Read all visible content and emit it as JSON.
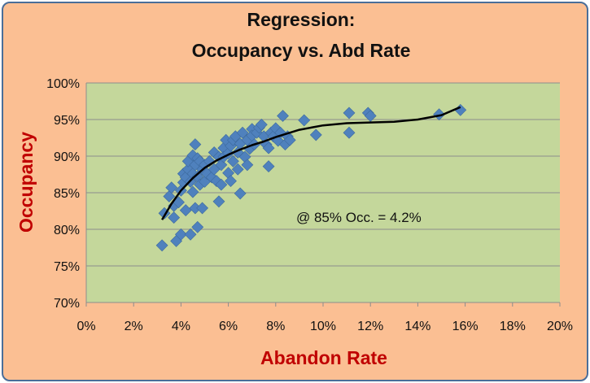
{
  "chart_data": {
    "type": "scatter",
    "title": [
      "Regression:",
      "Occupancy vs. Abd Rate"
    ],
    "xlabel": "Abandon Rate",
    "ylabel": "Occupancy",
    "xlim": [
      0,
      0.2
    ],
    "ylim": [
      0.7,
      1.0
    ],
    "x_ticks": [
      0,
      0.02,
      0.04,
      0.06,
      0.08,
      0.1,
      0.12,
      0.14,
      0.16,
      0.18,
      0.2
    ],
    "x_tick_labels": [
      "0%",
      "2%",
      "4%",
      "6%",
      "8%",
      "10%",
      "12%",
      "14%",
      "16%",
      "18%",
      "20%"
    ],
    "y_ticks": [
      0.7,
      0.75,
      0.8,
      0.85,
      0.9,
      0.95,
      1.0
    ],
    "y_tick_labels": [
      "70%",
      "75%",
      "80%",
      "85%",
      "90%",
      "95%",
      "100%"
    ],
    "grid": "horizontal",
    "annotation": "@ 85% Occ. = 4.2%",
    "colors": {
      "background": "#fbbf93",
      "plot_area": "#c4d79b",
      "border": "#4a6e99",
      "marker": "#4f81bd",
      "trendline": "#000000",
      "axis_title": "#c00000"
    },
    "series": [
      {
        "marker": "diamond",
        "points": [
          [
            0.032,
            0.778
          ],
          [
            0.033,
            0.822
          ],
          [
            0.035,
            0.845
          ],
          [
            0.036,
            0.857
          ],
          [
            0.037,
            0.832
          ],
          [
            0.037,
            0.816
          ],
          [
            0.038,
            0.784
          ],
          [
            0.039,
            0.837
          ],
          [
            0.04,
            0.853
          ],
          [
            0.04,
            0.793
          ],
          [
            0.041,
            0.864
          ],
          [
            0.041,
            0.876
          ],
          [
            0.042,
            0.871
          ],
          [
            0.042,
            0.826
          ],
          [
            0.043,
            0.882
          ],
          [
            0.043,
            0.893
          ],
          [
            0.044,
            0.865
          ],
          [
            0.044,
            0.793
          ],
          [
            0.045,
            0.876
          ],
          [
            0.045,
            0.851
          ],
          [
            0.045,
            0.901
          ],
          [
            0.046,
            0.829
          ],
          [
            0.046,
            0.888
          ],
          [
            0.046,
            0.916
          ],
          [
            0.047,
            0.897
          ],
          [
            0.047,
            0.872
          ],
          [
            0.047,
            0.803
          ],
          [
            0.048,
            0.861
          ],
          [
            0.048,
            0.893
          ],
          [
            0.049,
            0.882
          ],
          [
            0.049,
            0.829
          ],
          [
            0.05,
            0.865
          ],
          [
            0.05,
            0.888
          ],
          [
            0.051,
            0.876
          ],
          [
            0.052,
            0.893
          ],
          [
            0.053,
            0.871
          ],
          [
            0.054,
            0.905
          ],
          [
            0.054,
            0.882
          ],
          [
            0.055,
            0.866
          ],
          [
            0.056,
            0.899
          ],
          [
            0.056,
            0.838
          ],
          [
            0.057,
            0.888
          ],
          [
            0.057,
            0.861
          ],
          [
            0.058,
            0.911
          ],
          [
            0.058,
            0.899
          ],
          [
            0.059,
            0.922
          ],
          [
            0.06,
            0.877
          ],
          [
            0.06,
            0.904
          ],
          [
            0.061,
            0.914
          ],
          [
            0.061,
            0.866
          ],
          [
            0.062,
            0.893
          ],
          [
            0.062,
            0.922
          ],
          [
            0.063,
            0.927
          ],
          [
            0.064,
            0.905
          ],
          [
            0.064,
            0.882
          ],
          [
            0.065,
            0.849
          ],
          [
            0.065,
            0.917
          ],
          [
            0.066,
            0.932
          ],
          [
            0.067,
            0.899
          ],
          [
            0.068,
            0.922
          ],
          [
            0.068,
            0.888
          ],
          [
            0.069,
            0.91
          ],
          [
            0.07,
            0.937
          ],
          [
            0.07,
            0.928
          ],
          [
            0.071,
            0.916
          ],
          [
            0.072,
            0.932
          ],
          [
            0.073,
            0.939
          ],
          [
            0.074,
            0.943
          ],
          [
            0.075,
            0.927
          ],
          [
            0.076,
            0.916
          ],
          [
            0.077,
            0.886
          ],
          [
            0.077,
            0.911
          ],
          [
            0.078,
            0.932
          ],
          [
            0.079,
            0.927
          ],
          [
            0.08,
            0.938
          ],
          [
            0.081,
            0.921
          ],
          [
            0.082,
            0.932
          ],
          [
            0.083,
            0.955
          ],
          [
            0.084,
            0.916
          ],
          [
            0.085,
            0.927
          ],
          [
            0.086,
            0.922
          ],
          [
            0.092,
            0.949
          ],
          [
            0.097,
            0.929
          ],
          [
            0.111,
            0.959
          ],
          [
            0.111,
            0.932
          ],
          [
            0.119,
            0.959
          ],
          [
            0.12,
            0.955
          ],
          [
            0.149,
            0.957
          ],
          [
            0.158,
            0.963
          ]
        ]
      }
    ],
    "trendline": {
      "type": "polynomial",
      "points": [
        [
          0.032,
          0.813
        ],
        [
          0.036,
          0.835
        ],
        [
          0.04,
          0.853
        ],
        [
          0.045,
          0.87
        ],
        [
          0.05,
          0.884
        ],
        [
          0.055,
          0.894
        ],
        [
          0.06,
          0.902
        ],
        [
          0.065,
          0.909
        ],
        [
          0.07,
          0.915
        ],
        [
          0.075,
          0.92
        ],
        [
          0.08,
          0.926
        ],
        [
          0.085,
          0.931
        ],
        [
          0.09,
          0.936
        ],
        [
          0.095,
          0.939
        ],
        [
          0.1,
          0.942
        ],
        [
          0.11,
          0.945
        ],
        [
          0.12,
          0.946
        ],
        [
          0.13,
          0.947
        ],
        [
          0.14,
          0.95
        ],
        [
          0.15,
          0.956
        ],
        [
          0.158,
          0.967
        ]
      ]
    }
  }
}
